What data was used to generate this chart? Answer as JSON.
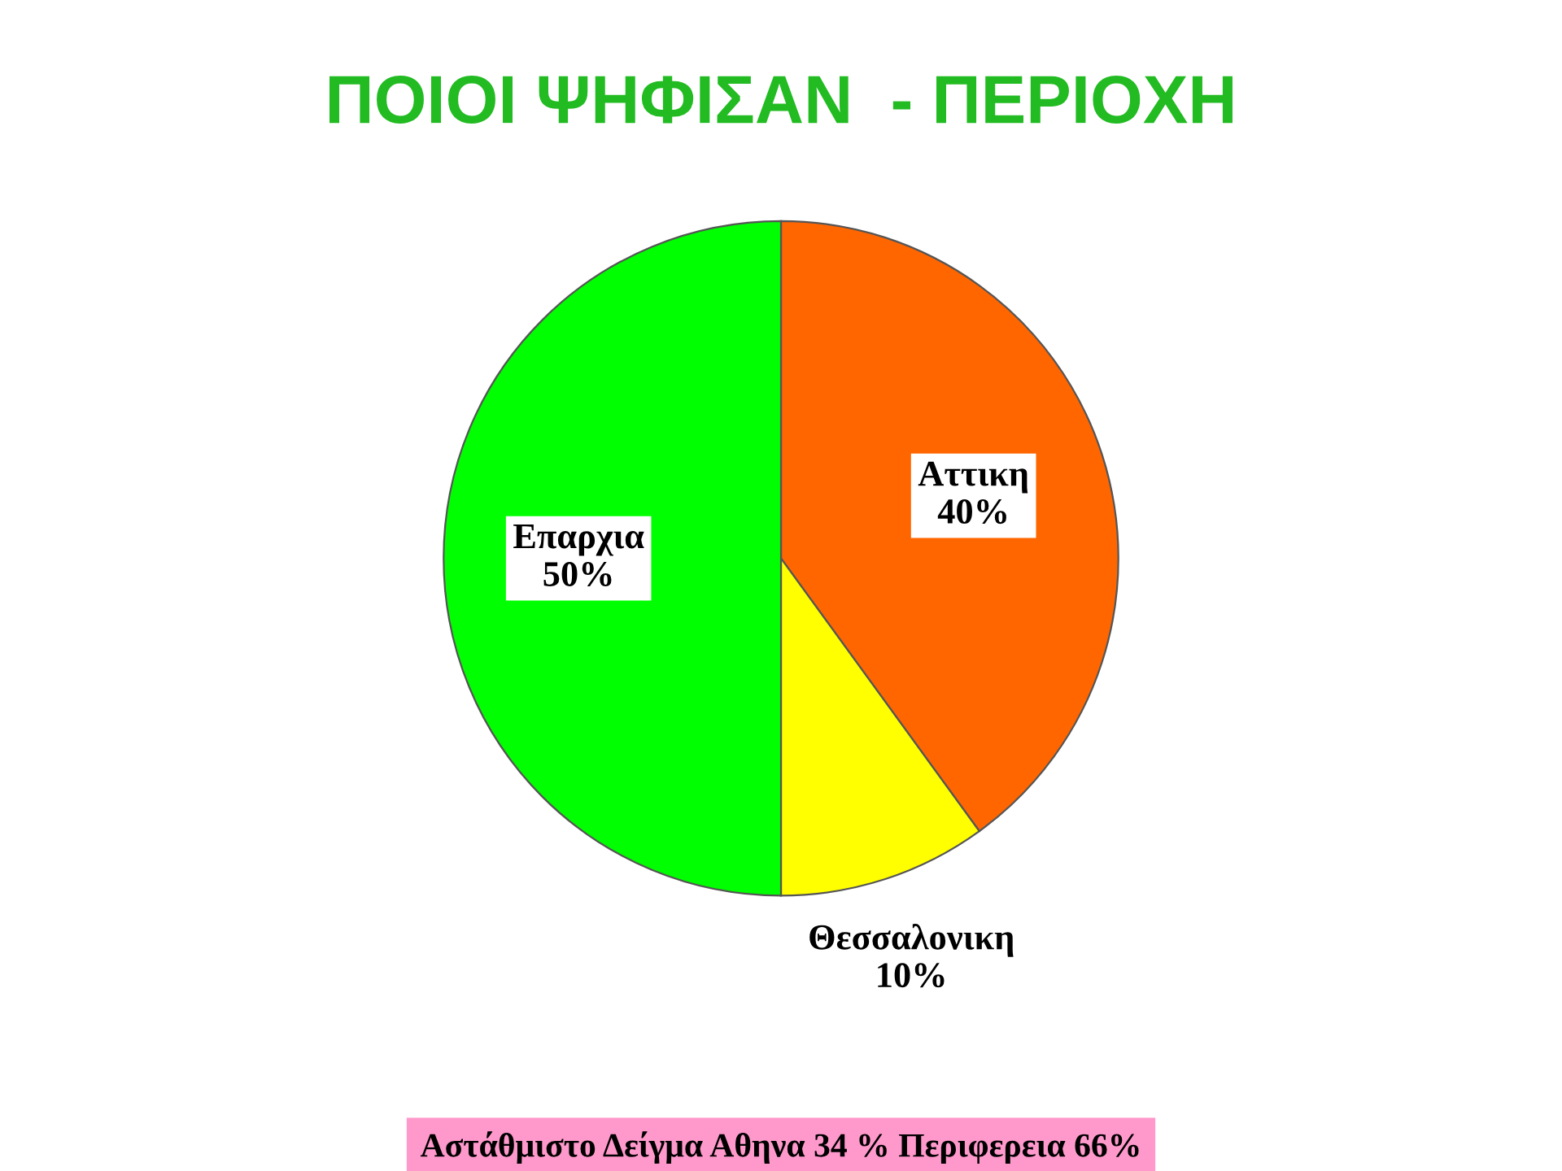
{
  "chart_data": {
    "type": "pie",
    "title": "ΠΟΙΟΙ ΨΗΦΙΣΑΝ  - ΠΕΡΙΟΧΗ",
    "categories": [
      "Αττικη",
      "Θεσσαλονικη",
      "Επαρχια"
    ],
    "values": [
      40,
      10,
      50
    ],
    "value_labels": [
      "40%",
      "10%",
      "50%"
    ],
    "colors": [
      "#ff6600",
      "#ffff00",
      "#00ff00"
    ],
    "annotations": [
      "Αστάθμιστο Δείγμα Αθηνα 34 % Περιφερεια 66%"
    ]
  }
}
